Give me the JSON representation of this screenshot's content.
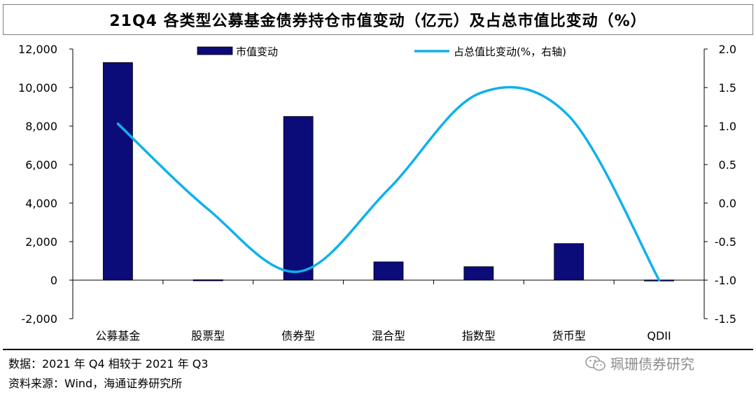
{
  "title": "21Q4 各类型公募基金债券持仓市值变动（亿元）及占总市值比变动（%）",
  "chart_data": {
    "type": "bar",
    "categories": [
      "公募基金",
      "股票型",
      "债券型",
      "混合型",
      "指数型",
      "货币型",
      "QDII"
    ],
    "series": [
      {
        "name": "市值变动",
        "type": "bar",
        "axis": "left",
        "color": "#0b0b7a",
        "values": [
          11300,
          20,
          8500,
          950,
          700,
          1900,
          10
        ]
      },
      {
        "name": "占总值比变动(%，右轴)",
        "type": "line",
        "axis": "right",
        "color": "#10b0ec",
        "values": [
          1.03,
          -0.08,
          -0.89,
          0.18,
          1.42,
          1.13,
          -1.0
        ]
      }
    ],
    "y_left": {
      "min": -2000,
      "max": 12000,
      "ticks": [
        "-2,000",
        "0",
        "2,000",
        "4,000",
        "6,000",
        "8,000",
        "10,000",
        "12,000"
      ]
    },
    "y_right": {
      "min": -1.5,
      "max": 2.0,
      "ticks": [
        "-1.5",
        "-1.0",
        "-0.5",
        "0.0",
        "0.5",
        "1.0",
        "1.5",
        "2.0"
      ]
    },
    "legend_position": "top"
  },
  "notes": {
    "line1": "数据：2021 年 Q4 相较于 2021 年 Q3",
    "line2": "资料来源：Wind，海通证券研究所"
  },
  "watermark": "珮珊债券研究",
  "icons": {
    "watermark_icon": "wechat-icon"
  }
}
